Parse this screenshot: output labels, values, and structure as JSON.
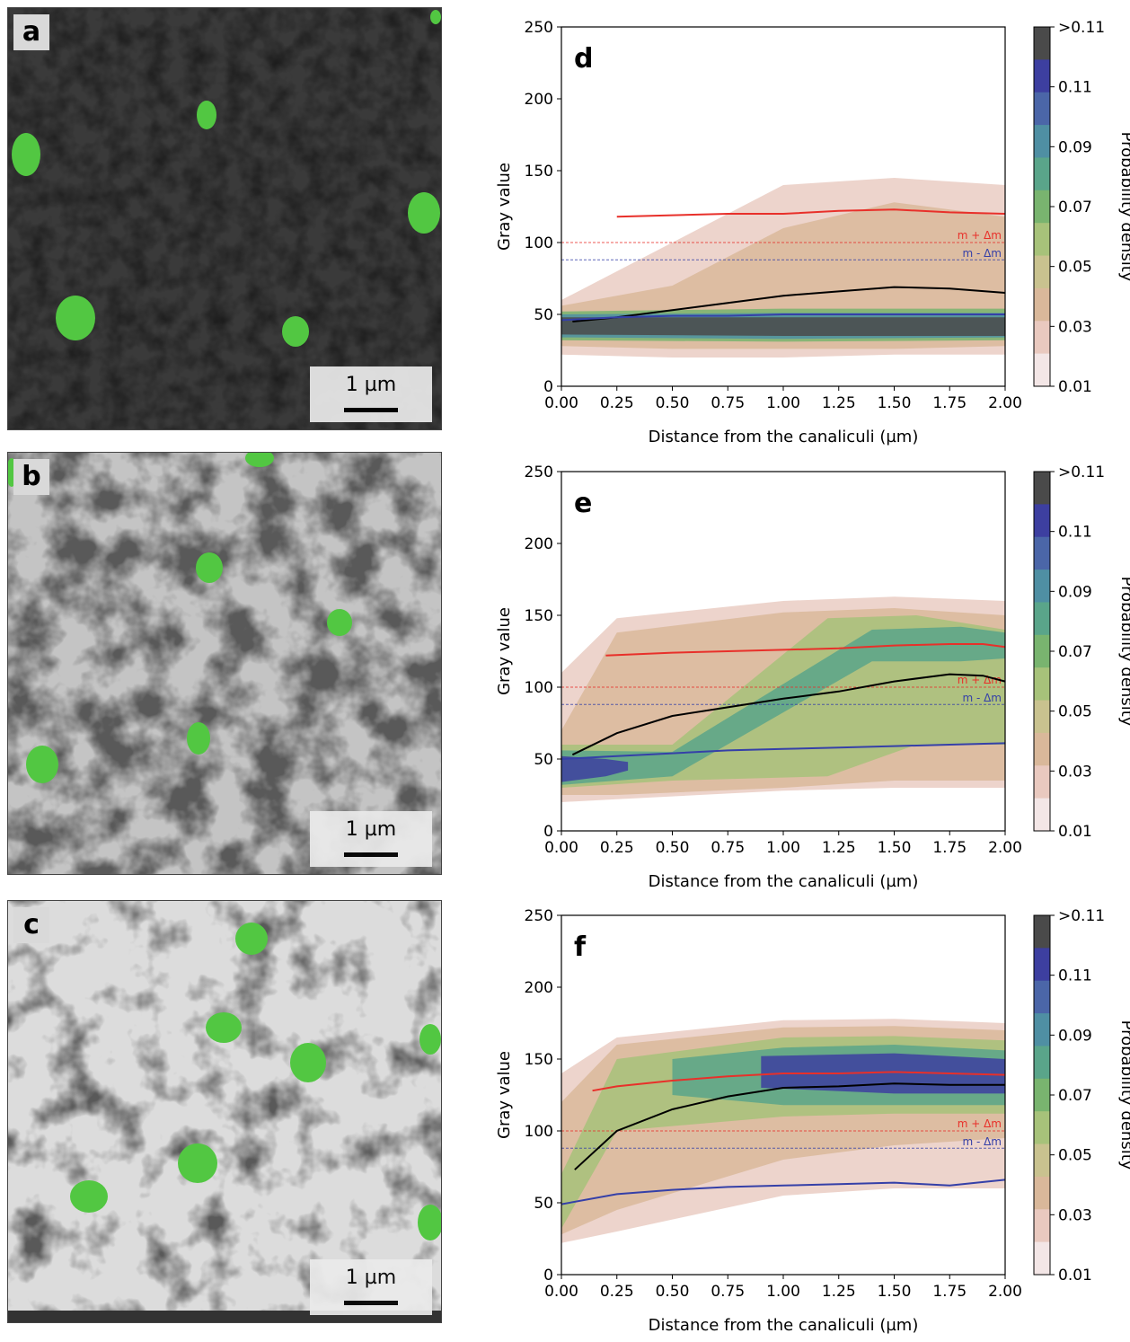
{
  "micrographs": [
    {
      "label": "a",
      "scale_text": "1 µm",
      "tone": "dark"
    },
    {
      "label": "b",
      "scale_text": "1 µm",
      "tone": "mid"
    },
    {
      "label": "c",
      "scale_text": "1 µm",
      "tone": "light"
    }
  ],
  "chart_data": [
    {
      "type": "line",
      "panel_label": "d",
      "xlabel": "Distance from the canaliculi (µm)",
      "ylabel": "Gray value",
      "xlim": [
        0,
        2
      ],
      "ylim": [
        0,
        250
      ],
      "xticks": [
        "0.00",
        "0.25",
        "0.50",
        "0.75",
        "1.00",
        "1.25",
        "1.50",
        "1.75",
        "2.00"
      ],
      "yticks": [
        "0",
        "50",
        "100",
        "150",
        "200",
        "250"
      ],
      "colorbar": {
        "label": "Probability density",
        "ticks": [
          ">0.11",
          "0.11",
          "0.09",
          "0.07",
          "0.05",
          "0.03",
          "0.01"
        ]
      },
      "thresholds": [
        {
          "label": "m + Δm",
          "y": 100,
          "color": "#e8302a"
        },
        {
          "label": "m - Δm",
          "y": 88,
          "color": "#3540a8"
        }
      ],
      "series": [
        {
          "color": "#e8302a",
          "x": [
            0.25,
            0.5,
            0.75,
            1.0,
            1.25,
            1.5,
            1.75,
            2.0
          ],
          "y": [
            118,
            119,
            120,
            120,
            122,
            123,
            121,
            120
          ]
        },
        {
          "color": "#000000",
          "x": [
            0.05,
            0.25,
            0.5,
            0.75,
            1.0,
            1.25,
            1.5,
            1.75,
            2.0
          ],
          "y": [
            45,
            48,
            53,
            58,
            63,
            66,
            69,
            68,
            65
          ]
        },
        {
          "color": "#3540a8",
          "x": [
            0.0,
            0.25,
            0.5,
            0.75,
            1.0,
            1.25,
            1.5,
            1.75,
            2.0
          ],
          "y": [
            46,
            48,
            49,
            49,
            50,
            50,
            50,
            50,
            50
          ]
        }
      ]
    },
    {
      "type": "line",
      "panel_label": "e",
      "xlabel": "Distance from the canaliculi (µm)",
      "ylabel": "Gray value",
      "xlim": [
        0,
        2
      ],
      "ylim": [
        0,
        250
      ],
      "xticks": [
        "0.00",
        "0.25",
        "0.50",
        "0.75",
        "1.00",
        "1.25",
        "1.50",
        "1.75",
        "2.00"
      ],
      "yticks": [
        "0",
        "50",
        "100",
        "150",
        "200",
        "250"
      ],
      "colorbar": {
        "label": "Probability density",
        "ticks": [
          ">0.11",
          "0.11",
          "0.09",
          "0.07",
          "0.05",
          "0.03",
          "0.01"
        ]
      },
      "thresholds": [
        {
          "label": "m + Δm",
          "y": 100,
          "color": "#e8302a"
        },
        {
          "label": "m - Δm",
          "y": 88,
          "color": "#3540a8"
        }
      ],
      "series": [
        {
          "color": "#e8302a",
          "x": [
            0.2,
            0.5,
            0.75,
            1.0,
            1.25,
            1.5,
            1.75,
            1.9,
            2.0
          ],
          "y": [
            122,
            124,
            125,
            126,
            127,
            129,
            130,
            130,
            128
          ]
        },
        {
          "color": "#000000",
          "x": [
            0.05,
            0.25,
            0.5,
            0.75,
            1.0,
            1.25,
            1.5,
            1.75,
            1.9,
            2.0
          ],
          "y": [
            53,
            68,
            80,
            86,
            92,
            97,
            104,
            109,
            108,
            104
          ]
        },
        {
          "color": "#3540a8",
          "x": [
            0.0,
            0.25,
            0.5,
            0.75,
            1.0,
            1.25,
            1.5,
            1.75,
            2.0
          ],
          "y": [
            50,
            52,
            54,
            56,
            57,
            58,
            59,
            60,
            61
          ]
        }
      ]
    },
    {
      "type": "line",
      "panel_label": "f",
      "xlabel": "Distance from the canaliculi (µm)",
      "ylabel": "Gray value",
      "xlim": [
        0,
        2
      ],
      "ylim": [
        0,
        250
      ],
      "xticks": [
        "0.00",
        "0.25",
        "0.50",
        "0.75",
        "1.00",
        "1.25",
        "1.50",
        "1.75",
        "2.00"
      ],
      "yticks": [
        "0",
        "50",
        "100",
        "150",
        "200",
        "250"
      ],
      "colorbar": {
        "label": "Probability density",
        "ticks": [
          ">0.11",
          "0.11",
          "0.09",
          "0.07",
          "0.05",
          "0.03",
          "0.01"
        ]
      },
      "thresholds": [
        {
          "label": "m + Δm",
          "y": 100,
          "color": "#e8302a"
        },
        {
          "label": "m - Δm",
          "y": 88,
          "color": "#3540a8"
        }
      ],
      "series": [
        {
          "color": "#e8302a",
          "x": [
            0.14,
            0.25,
            0.5,
            0.75,
            1.0,
            1.25,
            1.5,
            1.75,
            2.0
          ],
          "y": [
            128,
            131,
            135,
            138,
            140,
            140,
            141,
            140,
            139
          ]
        },
        {
          "color": "#000000",
          "x": [
            0.06,
            0.25,
            0.5,
            0.75,
            1.0,
            1.25,
            1.5,
            1.75,
            2.0
          ],
          "y": [
            73,
            100,
            115,
            124,
            130,
            131,
            133,
            132,
            132
          ]
        },
        {
          "color": "#3540a8",
          "x": [
            0.0,
            0.25,
            0.5,
            0.75,
            1.0,
            1.25,
            1.5,
            1.75,
            2.0
          ],
          "y": [
            49,
            56,
            59,
            61,
            62,
            63,
            64,
            62,
            66
          ]
        }
      ]
    }
  ]
}
